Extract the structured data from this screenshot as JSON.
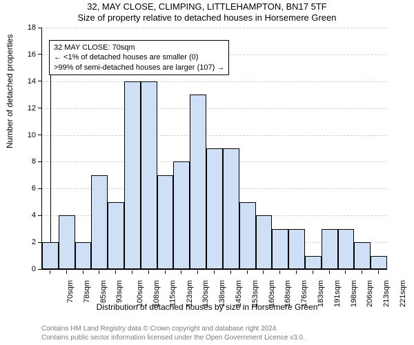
{
  "title_main": "32, MAY CLOSE, CLIMPING, LITTLEHAMPTON, BN17 5TF",
  "title_sub": "Size of property relative to detached houses in Horsemere Green",
  "chart": {
    "type": "histogram",
    "x_axis_title": "Distribution of detached houses by size in Horsemere Green",
    "y_axis_title": "Number of detached properties",
    "categories": [
      "70sqm",
      "78sqm",
      "85sqm",
      "93sqm",
      "100sqm",
      "108sqm",
      "115sqm",
      "123sqm",
      "130sqm",
      "138sqm",
      "145sqm",
      "153sqm",
      "160sqm",
      "168sqm",
      "176sqm",
      "183sqm",
      "191sqm",
      "198sqm",
      "206sqm",
      "213sqm",
      "221sqm"
    ],
    "values": [
      2,
      4,
      2,
      7,
      5,
      14,
      14,
      7,
      8,
      13,
      9,
      9,
      5,
      4,
      3,
      3,
      1,
      3,
      3,
      2,
      1
    ],
    "bar_fill": "#cfe0f6",
    "bar_stroke": "#000000",
    "ylim": [
      0,
      18
    ],
    "ytick_step": 2,
    "grid_color": "#cfcfcf",
    "background_color": "#ffffff",
    "bar_width": 1.0,
    "axis_fontsize": 11,
    "title_fontsize": 13,
    "label_fontsize": 12,
    "subject_bin_index": 0
  },
  "annotation": {
    "line1": "32 MAY CLOSE: 70sqm",
    "line2": "← <1% of detached houses are smaller (0)",
    "line3": ">99% of semi-detached houses are larger (107) →",
    "box_stroke": "#000000",
    "box_fill": "#ffffff"
  },
  "footer": {
    "line1": "Contains HM Land Registry data © Crown copyright and database right 2024.",
    "line2": "Contains public sector information licensed under the Open Government Licence v3.0.",
    "color": "#7a7a7a"
  }
}
